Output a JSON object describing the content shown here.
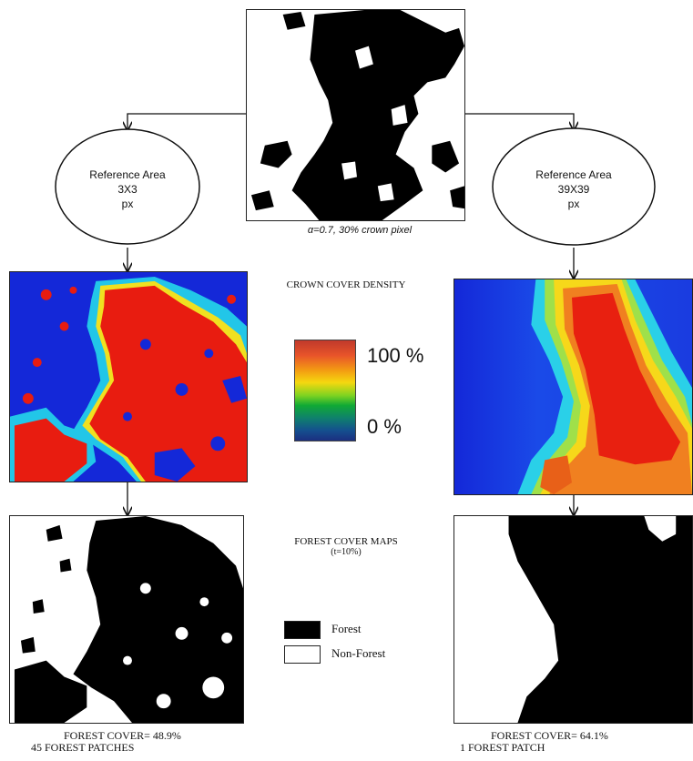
{
  "source_caption": "α=0.7, 30% crown pixel",
  "left_branch": {
    "reference_area": {
      "line1": "Reference Area",
      "line2": "3X3",
      "line3": "px"
    },
    "footer": {
      "cover": "FOREST COVER= 48.9%",
      "patches": "45 FOREST PATCHES"
    }
  },
  "right_branch": {
    "reference_area": {
      "line1": "Reference Area",
      "line2": "39X39",
      "line3": "px"
    },
    "footer": {
      "cover": "FOREST COVER= 64.1%",
      "patches": "1 FOREST PATCH"
    }
  },
  "density_legend": {
    "title": "CROWN COVER DENSITY",
    "max_label": "100 %",
    "min_label": "0 %",
    "colors": [
      "#c0392b",
      "#e8542a",
      "#f39c12",
      "#f5d80f",
      "#7ed321",
      "#10a935",
      "#0f7f6e",
      "#144f8f",
      "#1b2f80"
    ]
  },
  "forest_map_legend": {
    "title": "FOREST COVER MAPS",
    "threshold": "(t=10%)",
    "forest_label": "Forest",
    "nonforest_label": "Non-Forest",
    "forest_color": "#000000",
    "nonforest_color": "#ffffff"
  }
}
